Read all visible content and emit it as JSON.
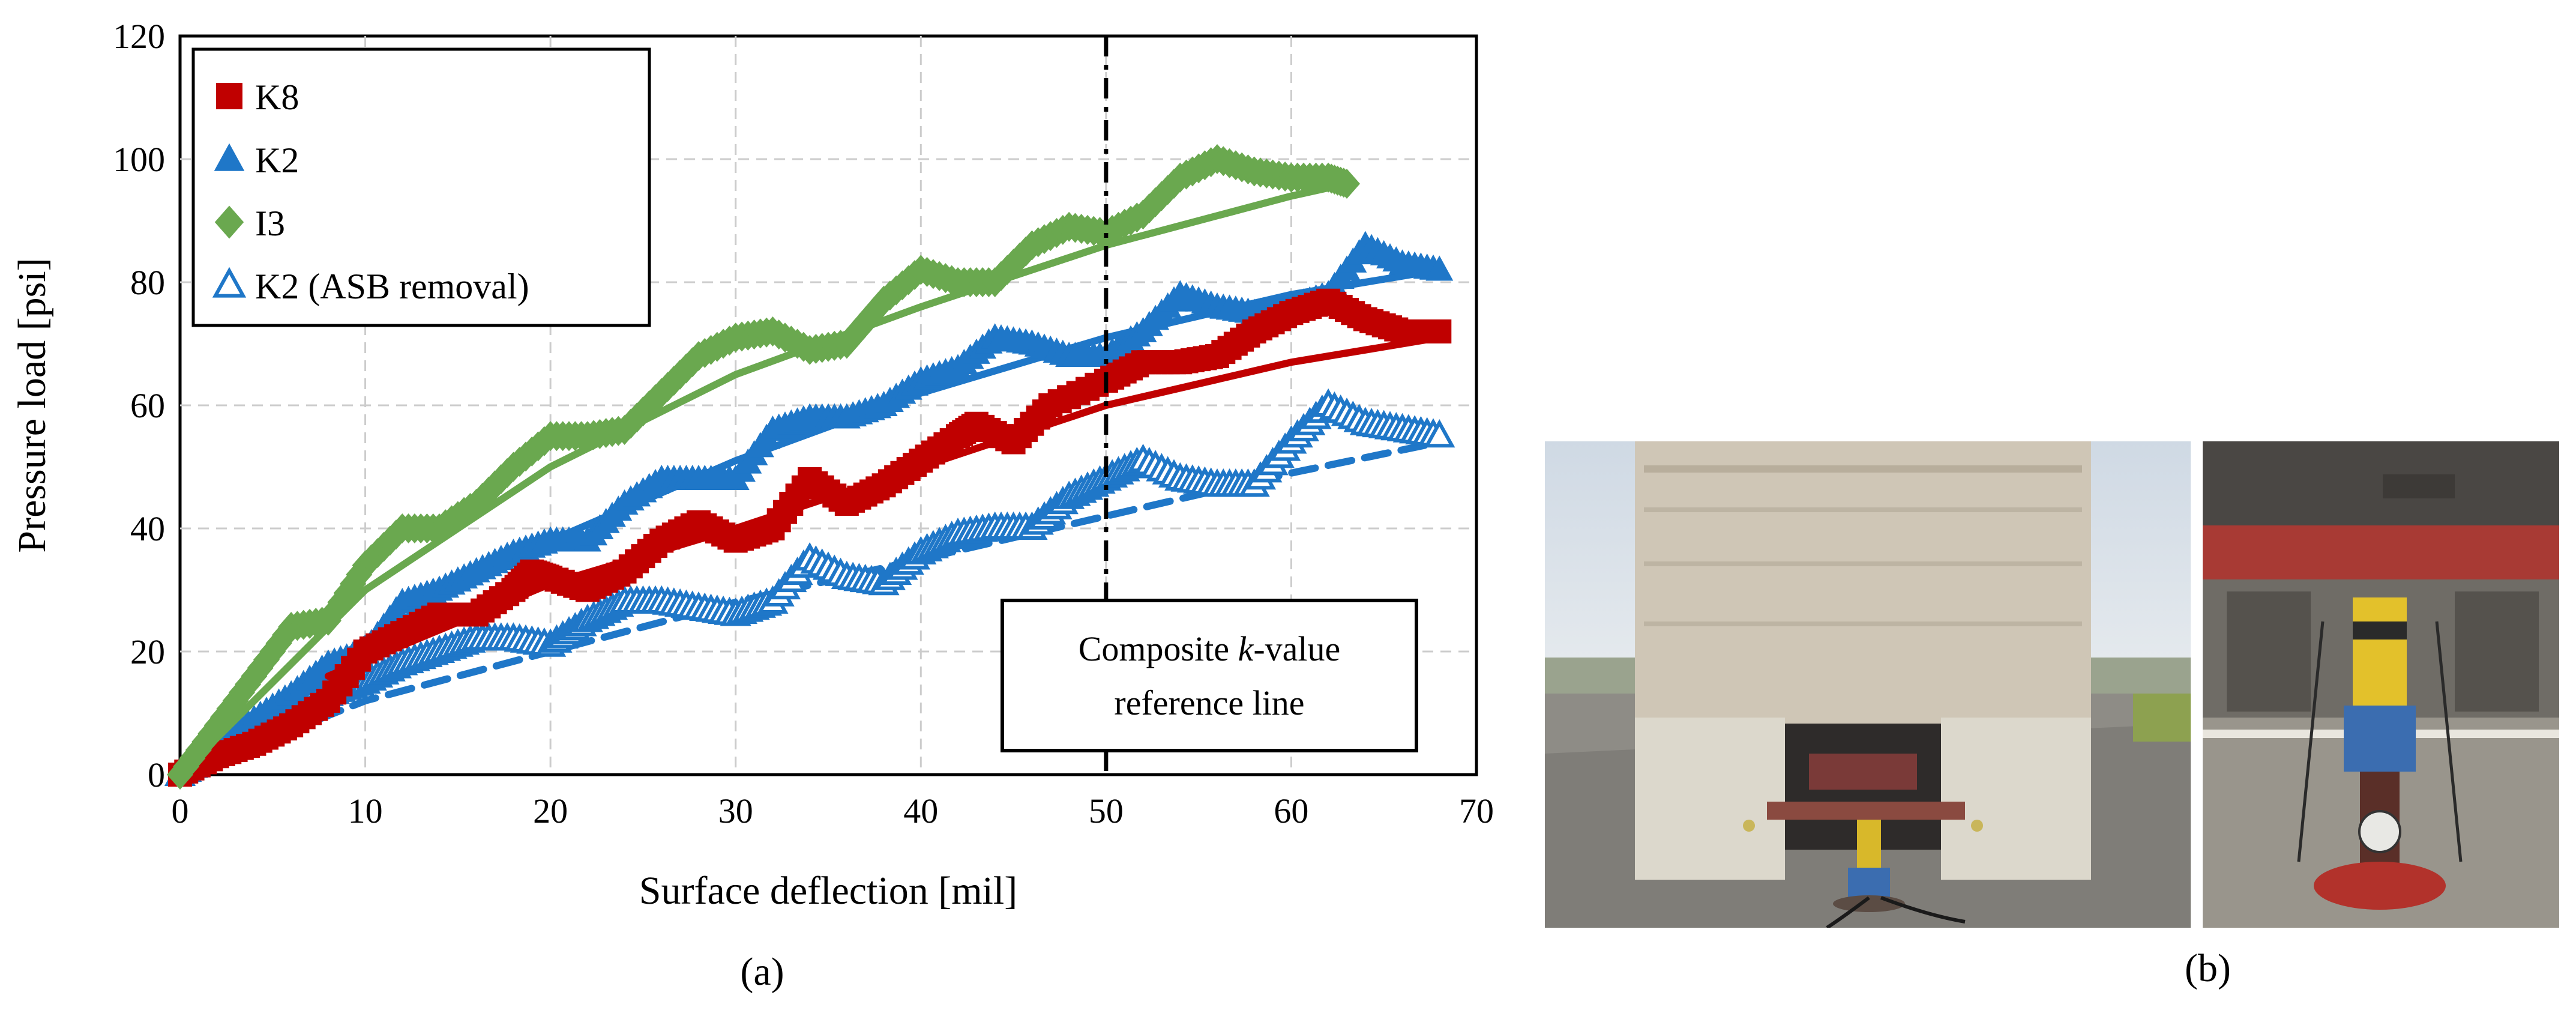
{
  "chart_data": {
    "type": "scatter",
    "panel_label": "(a)",
    "xlabel": "Surface deflection [mil]",
    "ylabel": "Pressure load [psi]",
    "xlim": [
      0,
      70
    ],
    "ylim": [
      0,
      120
    ],
    "xticks": [
      0,
      10,
      20,
      30,
      40,
      50,
      60,
      70
    ],
    "yticks": [
      0,
      20,
      40,
      60,
      80,
      100,
      120
    ],
    "grid": true,
    "legend_placement": "top-left",
    "reference_line": {
      "x": 50,
      "label_line1": "Composite k-value",
      "label_line2": "reference line",
      "label_prefix": "Composite ",
      "label_italic": "k",
      "label_suffix": "-value"
    },
    "series": [
      {
        "name": "K8",
        "marker": "square",
        "color": "#c00000",
        "points": [
          [
            0,
            0
          ],
          [
            2,
            3
          ],
          [
            4,
            5
          ],
          [
            6,
            8
          ],
          [
            8,
            12
          ],
          [
            10,
            20
          ],
          [
            12,
            23
          ],
          [
            14,
            26
          ],
          [
            16,
            26
          ],
          [
            18,
            30
          ],
          [
            19,
            33
          ],
          [
            20,
            32
          ],
          [
            22,
            30
          ],
          [
            24,
            33
          ],
          [
            26,
            38
          ],
          [
            28,
            41
          ],
          [
            30,
            38
          ],
          [
            32,
            40
          ],
          [
            34,
            48
          ],
          [
            36,
            44
          ],
          [
            38,
            47
          ],
          [
            40,
            51
          ],
          [
            42,
            55
          ],
          [
            43,
            57
          ],
          [
            45,
            54
          ],
          [
            47,
            60
          ],
          [
            50,
            64
          ],
          [
            52,
            67
          ],
          [
            54,
            67
          ],
          [
            56,
            68
          ],
          [
            58,
            72
          ],
          [
            60,
            75
          ],
          [
            62,
            77
          ],
          [
            64,
            74
          ],
          [
            66,
            72
          ],
          [
            68,
            72
          ]
        ],
        "fit": [
          [
            8,
            16
          ],
          [
            20,
            31
          ],
          [
            30,
            40
          ],
          [
            40,
            50
          ],
          [
            50,
            60
          ],
          [
            60,
            67
          ],
          [
            68,
            71
          ]
        ]
      },
      {
        "name": "K2",
        "marker": "triangle",
        "color": "#1f77c8",
        "points": [
          [
            0,
            0
          ],
          [
            2,
            5
          ],
          [
            4,
            9
          ],
          [
            6,
            13
          ],
          [
            8,
            18
          ],
          [
            10,
            20
          ],
          [
            12,
            28
          ],
          [
            14,
            30
          ],
          [
            16,
            33
          ],
          [
            18,
            36
          ],
          [
            20,
            38
          ],
          [
            22,
            38
          ],
          [
            24,
            44
          ],
          [
            26,
            48
          ],
          [
            28,
            48
          ],
          [
            30,
            48
          ],
          [
            32,
            56
          ],
          [
            34,
            58
          ],
          [
            36,
            58
          ],
          [
            38,
            60
          ],
          [
            40,
            64
          ],
          [
            42,
            66
          ],
          [
            44,
            71
          ],
          [
            46,
            70
          ],
          [
            48,
            68
          ],
          [
            50,
            68
          ],
          [
            52,
            72
          ],
          [
            54,
            78
          ],
          [
            56,
            76
          ],
          [
            58,
            75
          ],
          [
            60,
            76
          ],
          [
            62,
            78
          ],
          [
            64,
            86
          ],
          [
            66,
            83
          ],
          [
            68,
            82
          ]
        ],
        "fit": [
          [
            0,
            0
          ],
          [
            10,
            22
          ],
          [
            20,
            38
          ],
          [
            30,
            51
          ],
          [
            40,
            62
          ],
          [
            50,
            71
          ],
          [
            60,
            78
          ],
          [
            68,
            82
          ]
        ]
      },
      {
        "name": "I3",
        "marker": "diamond",
        "color": "#6aa84f",
        "points": [
          [
            0,
            0
          ],
          [
            2,
            8
          ],
          [
            4,
            16
          ],
          [
            6,
            24
          ],
          [
            8,
            25
          ],
          [
            10,
            34
          ],
          [
            12,
            40
          ],
          [
            14,
            40
          ],
          [
            16,
            44
          ],
          [
            18,
            50
          ],
          [
            20,
            55
          ],
          [
            22,
            55
          ],
          [
            24,
            56
          ],
          [
            26,
            62
          ],
          [
            28,
            68
          ],
          [
            30,
            71
          ],
          [
            32,
            72
          ],
          [
            34,
            69
          ],
          [
            36,
            70
          ],
          [
            38,
            77
          ],
          [
            40,
            82
          ],
          [
            42,
            80
          ],
          [
            44,
            80
          ],
          [
            46,
            86
          ],
          [
            48,
            89
          ],
          [
            50,
            88
          ],
          [
            52,
            91
          ],
          [
            54,
            97
          ],
          [
            56,
            100
          ],
          [
            58,
            98
          ],
          [
            60,
            97
          ],
          [
            62,
            97
          ],
          [
            63,
            96
          ]
        ],
        "fit": [
          [
            0,
            0
          ],
          [
            10,
            30
          ],
          [
            20,
            50
          ],
          [
            30,
            65
          ],
          [
            40,
            76
          ],
          [
            50,
            86
          ],
          [
            60,
            94
          ],
          [
            63,
            96
          ]
        ]
      },
      {
        "name": "K2 (ASB removal)",
        "marker": "triangle-open",
        "color": "#1f77c8",
        "points": [
          [
            0,
            0
          ],
          [
            2,
            4
          ],
          [
            4,
            7
          ],
          [
            6,
            10
          ],
          [
            8,
            13
          ],
          [
            10,
            15
          ],
          [
            12,
            18
          ],
          [
            14,
            20
          ],
          [
            16,
            22
          ],
          [
            18,
            22
          ],
          [
            20,
            21
          ],
          [
            22,
            25
          ],
          [
            24,
            28
          ],
          [
            26,
            28
          ],
          [
            28,
            27
          ],
          [
            30,
            26
          ],
          [
            32,
            28
          ],
          [
            34,
            35
          ],
          [
            36,
            32
          ],
          [
            38,
            31
          ],
          [
            40,
            36
          ],
          [
            42,
            39
          ],
          [
            44,
            40
          ],
          [
            46,
            40
          ],
          [
            48,
            45
          ],
          [
            50,
            48
          ],
          [
            52,
            51
          ],
          [
            54,
            48
          ],
          [
            56,
            47
          ],
          [
            58,
            47
          ],
          [
            60,
            54
          ],
          [
            62,
            60
          ],
          [
            64,
            57
          ],
          [
            66,
            56
          ],
          [
            68,
            55
          ]
        ],
        "fit": [
          [
            0,
            0
          ],
          [
            10,
            12
          ],
          [
            20,
            20
          ],
          [
            30,
            28
          ],
          [
            40,
            35
          ],
          [
            50,
            42
          ],
          [
            60,
            49
          ],
          [
            68,
            54
          ]
        ]
      }
    ]
  },
  "photos": {
    "panel_label": "(b)"
  }
}
